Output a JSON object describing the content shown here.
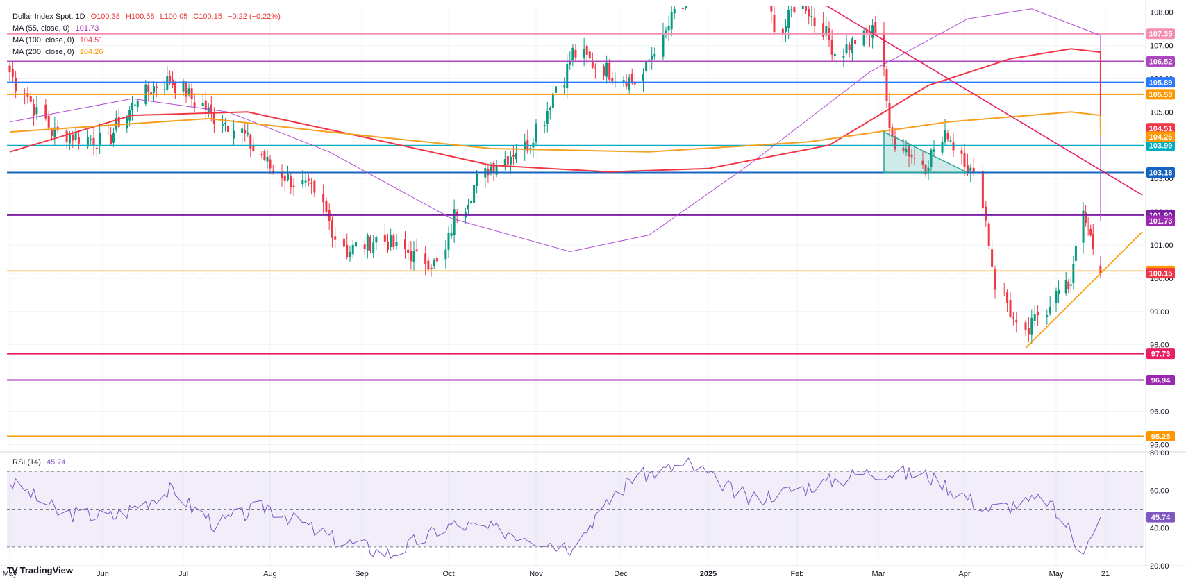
{
  "header": {
    "symbol": "Dollar Index Spot, 1D",
    "open": "O100.38",
    "high": "H100.58",
    "low": "L100.05",
    "close": "C100.15",
    "change": "−0.22 (−0.22%)",
    "ma55_label": "MA (55, close, 0)",
    "ma55_value": "101.73",
    "ma100_label": "MA (100, close, 0)",
    "ma100_value": "104.51",
    "ma200_label": "MA (200, close, 0)",
    "ma200_value": "104.26",
    "rsi_label": "RSI (14)",
    "rsi_value": "45.74"
  },
  "footer": {
    "brand": "TradingView",
    "logo": "TV"
  },
  "colors": {
    "up": "#089981",
    "down": "#f23645",
    "ma55": "#b04cd6",
    "ma100": "#f23645",
    "ma200": "#f5a020",
    "rsi": "#7e57c2",
    "grid": "#f0f3fa"
  },
  "chart_data": {
    "type": "candlestick",
    "instrument": "Dollar Index Spot",
    "timeframe": "1D",
    "ylim": [
      94.8,
      108.2
    ],
    "y_ticks": [
      "95.00",
      "96.00",
      "97.00",
      "98.00",
      "99.00",
      "100.00",
      "101.00",
      "102.00",
      "103.00",
      "104.00",
      "105.00",
      "106.00",
      "107.00",
      "108.00"
    ],
    "x_ticks": [
      "May",
      "Jun",
      "Jul",
      "Aug",
      "Sep",
      "Oct",
      "Nov",
      "Dec",
      "2025",
      "Feb",
      "Mar",
      "Apr",
      "May",
      "21"
    ],
    "price_waypoints": [
      {
        "date": "2024-05-01",
        "close": 106.2
      },
      {
        "date": "2024-05-15",
        "close": 104.4
      },
      {
        "date": "2024-06-03",
        "close": 104.1
      },
      {
        "date": "2024-06-14",
        "close": 105.5
      },
      {
        "date": "2024-06-26",
        "close": 106.0
      },
      {
        "date": "2024-07-10",
        "close": 105.0
      },
      {
        "date": "2024-07-22",
        "close": 104.4
      },
      {
        "date": "2024-08-02",
        "close": 103.2
      },
      {
        "date": "2024-08-15",
        "close": 102.6
      },
      {
        "date": "2024-08-27",
        "close": 100.8
      },
      {
        "date": "2024-09-06",
        "close": 101.2
      },
      {
        "date": "2024-09-20",
        "close": 100.6
      },
      {
        "date": "2024-09-27",
        "close": 100.4
      },
      {
        "date": "2024-10-03",
        "close": 101.9
      },
      {
        "date": "2024-10-15",
        "close": 103.3
      },
      {
        "date": "2024-10-30",
        "close": 104.1
      },
      {
        "date": "2024-11-14",
        "close": 106.8
      },
      {
        "date": "2024-11-27",
        "close": 106.2
      },
      {
        "date": "2024-12-06",
        "close": 105.9
      },
      {
        "date": "2024-12-20",
        "close": 108.0
      },
      {
        "date": "2025-01-13",
        "close": 109.9
      },
      {
        "date": "2025-01-27",
        "close": 107.4
      },
      {
        "date": "2025-02-03",
        "close": 108.4
      },
      {
        "date": "2025-02-14",
        "close": 106.8
      },
      {
        "date": "2025-02-28",
        "close": 107.5
      },
      {
        "date": "2025-03-05",
        "close": 104.3
      },
      {
        "date": "2025-03-18",
        "close": 103.4
      },
      {
        "date": "2025-03-26",
        "close": 104.4
      },
      {
        "date": "2025-04-04",
        "close": 103.0
      },
      {
        "date": "2025-04-11",
        "close": 99.8
      },
      {
        "date": "2025-04-21",
        "close": 98.2
      },
      {
        "date": "2025-04-29",
        "close": 99.3
      },
      {
        "date": "2025-05-07",
        "close": 99.9
      },
      {
        "date": "2025-05-12",
        "close": 101.8
      },
      {
        "date": "2025-05-16",
        "close": 101.0
      },
      {
        "date": "2025-05-19",
        "close": 100.15
      }
    ],
    "ma_lines": [
      {
        "name": "MA (55, close, 0)",
        "last": 101.73,
        "color": "#b04cd6",
        "waypoints": [
          [
            0,
            104.7
          ],
          [
            30,
            105.4
          ],
          [
            55,
            105.0
          ],
          [
            80,
            103.8
          ],
          [
            110,
            101.8
          ],
          [
            140,
            100.8
          ],
          [
            160,
            101.3
          ],
          [
            185,
            103.4
          ],
          [
            215,
            106.2
          ],
          [
            240,
            107.8
          ],
          [
            255,
            108.1
          ],
          [
            275,
            107.3
          ],
          [
            295,
            105.0
          ],
          [
            315,
            102.8
          ],
          [
            329,
            101.73
          ]
        ]
      },
      {
        "name": "MA (100, close, 0)",
        "last": 104.51,
        "color": "#f23645",
        "waypoints": [
          [
            0,
            103.8
          ],
          [
            30,
            104.9
          ],
          [
            60,
            105.0
          ],
          [
            90,
            104.2
          ],
          [
            120,
            103.4
          ],
          [
            150,
            103.2
          ],
          [
            175,
            103.3
          ],
          [
            205,
            104.0
          ],
          [
            230,
            105.8
          ],
          [
            250,
            106.6
          ],
          [
            265,
            106.9
          ],
          [
            285,
            106.8
          ],
          [
            305,
            106.0
          ],
          [
            329,
            104.51
          ]
        ]
      },
      {
        "name": "MA (200, close, 0)",
        "last": 104.26,
        "color": "#f5a020",
        "waypoints": [
          [
            0,
            104.4
          ],
          [
            50,
            104.8
          ],
          [
            80,
            104.4
          ],
          [
            120,
            103.9
          ],
          [
            160,
            103.8
          ],
          [
            200,
            104.1
          ],
          [
            235,
            104.7
          ],
          [
            265,
            105.0
          ],
          [
            290,
            104.9
          ],
          [
            310,
            104.5
          ],
          [
            329,
            104.26
          ]
        ]
      }
    ],
    "horizontal_levels": [
      {
        "price": 107.35,
        "label": "107.35",
        "color": "#f48fb1"
      },
      {
        "price": 106.52,
        "label": "106.52",
        "color": "#ab47bc"
      },
      {
        "price": 105.89,
        "label": "105.89",
        "color": "#2979ff"
      },
      {
        "price": 105.53,
        "label": "105.53",
        "color": "#ff9800"
      },
      {
        "price": 103.99,
        "label": "103.99",
        "color": "#00acc1"
      },
      {
        "price": 103.18,
        "label": "103.18",
        "color": "#1565c0"
      },
      {
        "price": 101.9,
        "label": "101.90",
        "color": "#7b1fa2"
      },
      {
        "price": 100.22,
        "label": "100.22",
        "color": "#ff9800"
      },
      {
        "price": 97.73,
        "label": "97.73",
        "color": "#e91e63"
      },
      {
        "price": 96.94,
        "label": "96.94",
        "color": "#9c27b0"
      },
      {
        "price": 95.25,
        "label": "95.25",
        "color": "#ff9800"
      }
    ],
    "other_price_labels": [
      {
        "price": 104.51,
        "label": "104.51",
        "color": "#f23645"
      },
      {
        "price": 104.26,
        "label": "104.26",
        "color": "#ff9800"
      },
      {
        "price": 101.73,
        "label": "101.73",
        "color": "#9c27b0"
      },
      {
        "price": 100.15,
        "label": "100.15",
        "color": "#f23645"
      }
    ],
    "trendlines": [
      {
        "name": "descending-resistance",
        "color": "#e91e63",
        "from": {
          "date": "2025-02-11",
          "price": 108.2
        },
        "to": {
          "date": "2025-06-05",
          "price": 102.5
        }
      },
      {
        "name": "ascending-support",
        "color": "#ff9800",
        "from": {
          "date": "2025-04-21",
          "price": 97.9
        },
        "to": {
          "date": "2025-06-05",
          "price": 101.4
        }
      }
    ],
    "triangle_pattern": {
      "color": "#26a69a",
      "points": [
        {
          "date": "2025-03-03",
          "price": 104.4
        },
        {
          "date": "2025-04-02",
          "price": 103.18
        },
        {
          "date": "2025-03-03",
          "price": 103.18
        }
      ]
    },
    "rsi": {
      "ylim": [
        20,
        80
      ],
      "y_ticks": [
        "20.00",
        "40.00",
        "60.00",
        "80.00"
      ],
      "band": [
        30,
        70
      ],
      "last": 45.74,
      "waypoints": [
        [
          0,
          65
        ],
        [
          12,
          48
        ],
        [
          25,
          46
        ],
        [
          40,
          60
        ],
        [
          52,
          42
        ],
        [
          65,
          52
        ],
        [
          80,
          35
        ],
        [
          95,
          26
        ],
        [
          110,
          42
        ],
        [
          125,
          38
        ],
        [
          140,
          30
        ],
        [
          155,
          66
        ],
        [
          170,
          74
        ],
        [
          185,
          55
        ],
        [
          200,
          62
        ],
        [
          215,
          70
        ],
        [
          230,
          68
        ],
        [
          245,
          50
        ],
        [
          258,
          55
        ],
        [
          268,
          30
        ],
        [
          280,
          44
        ],
        [
          292,
          28
        ],
        [
          300,
          28
        ],
        [
          312,
          45
        ],
        [
          322,
          56
        ],
        [
          329,
          45.74
        ]
      ]
    }
  }
}
